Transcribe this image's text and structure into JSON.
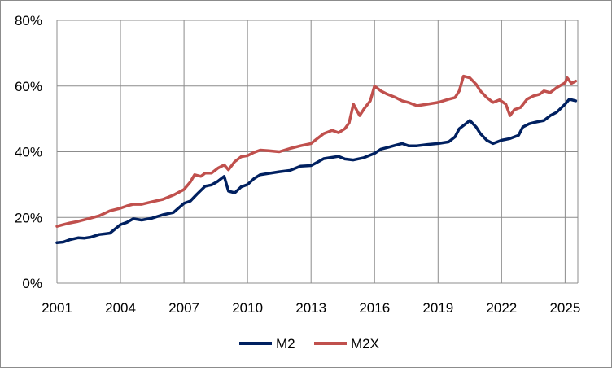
{
  "chart_data": {
    "type": "line",
    "title": "",
    "xlabel": "",
    "ylabel": "",
    "xlim": [
      2001,
      2025.6
    ],
    "ylim": [
      0,
      80
    ],
    "grid": true,
    "legend_position": "bottom-center",
    "x_tick_labels": [
      "2001",
      "2004",
      "2007",
      "2010",
      "2013",
      "2016",
      "2019",
      "2022",
      "2025"
    ],
    "x_tick_values": [
      2001,
      2004,
      2007,
      2010,
      2013,
      2016,
      2019,
      2022,
      2025
    ],
    "y_tick_labels": [
      "0%",
      "20%",
      "40%",
      "60%",
      "80%"
    ],
    "y_tick_values": [
      0,
      20,
      40,
      60,
      80
    ],
    "series": [
      {
        "name": "M2",
        "color": "#002060",
        "points": [
          [
            2001.0,
            12.3
          ],
          [
            2001.3,
            12.5
          ],
          [
            2001.6,
            13.2
          ],
          [
            2002.0,
            13.8
          ],
          [
            2002.3,
            13.7
          ],
          [
            2002.6,
            14.0
          ],
          [
            2003.0,
            14.8
          ],
          [
            2003.5,
            15.2
          ],
          [
            2004.0,
            17.8
          ],
          [
            2004.3,
            18.5
          ],
          [
            2004.6,
            19.6
          ],
          [
            2005.0,
            19.2
          ],
          [
            2005.5,
            19.8
          ],
          [
            2006.0,
            20.8
          ],
          [
            2006.5,
            21.5
          ],
          [
            2007.0,
            24.3
          ],
          [
            2007.3,
            25.0
          ],
          [
            2007.6,
            27.0
          ],
          [
            2008.0,
            29.5
          ],
          [
            2008.3,
            29.9
          ],
          [
            2008.6,
            31.0
          ],
          [
            2008.9,
            32.5
          ],
          [
            2009.1,
            28.0
          ],
          [
            2009.4,
            27.5
          ],
          [
            2009.7,
            29.3
          ],
          [
            2010.0,
            30.0
          ],
          [
            2010.3,
            31.8
          ],
          [
            2010.6,
            33.0
          ],
          [
            2011.0,
            33.4
          ],
          [
            2011.5,
            33.9
          ],
          [
            2012.0,
            34.3
          ],
          [
            2012.5,
            35.6
          ],
          [
            2013.0,
            35.8
          ],
          [
            2013.3,
            36.8
          ],
          [
            2013.6,
            37.9
          ],
          [
            2014.0,
            38.3
          ],
          [
            2014.3,
            38.6
          ],
          [
            2014.6,
            37.8
          ],
          [
            2015.0,
            37.5
          ],
          [
            2015.5,
            38.2
          ],
          [
            2016.0,
            39.5
          ],
          [
            2016.3,
            40.8
          ],
          [
            2016.6,
            41.3
          ],
          [
            2017.0,
            42.0
          ],
          [
            2017.3,
            42.5
          ],
          [
            2017.6,
            41.8
          ],
          [
            2018.0,
            41.8
          ],
          [
            2018.5,
            42.2
          ],
          [
            2019.0,
            42.5
          ],
          [
            2019.5,
            43.0
          ],
          [
            2019.8,
            44.5
          ],
          [
            2020.0,
            47.0
          ],
          [
            2020.3,
            48.5
          ],
          [
            2020.5,
            49.5
          ],
          [
            2020.8,
            47.5
          ],
          [
            2021.0,
            45.5
          ],
          [
            2021.3,
            43.5
          ],
          [
            2021.6,
            42.5
          ],
          [
            2022.0,
            43.5
          ],
          [
            2022.4,
            44.0
          ],
          [
            2022.8,
            45.0
          ],
          [
            2023.0,
            47.5
          ],
          [
            2023.3,
            48.5
          ],
          [
            2023.6,
            49.0
          ],
          [
            2024.0,
            49.5
          ],
          [
            2024.3,
            51.0
          ],
          [
            2024.6,
            52.0
          ],
          [
            2025.0,
            54.5
          ],
          [
            2025.2,
            56.0
          ],
          [
            2025.5,
            55.5
          ]
        ]
      },
      {
        "name": "M2X",
        "color": "#C0504D",
        "points": [
          [
            2001.0,
            17.3
          ],
          [
            2001.3,
            17.8
          ],
          [
            2001.6,
            18.3
          ],
          [
            2002.0,
            18.8
          ],
          [
            2002.3,
            19.3
          ],
          [
            2002.6,
            19.8
          ],
          [
            2003.0,
            20.5
          ],
          [
            2003.5,
            22.0
          ],
          [
            2004.0,
            22.8
          ],
          [
            2004.3,
            23.5
          ],
          [
            2004.6,
            24.0
          ],
          [
            2005.0,
            24.0
          ],
          [
            2005.5,
            24.8
          ],
          [
            2006.0,
            25.5
          ],
          [
            2006.5,
            26.8
          ],
          [
            2007.0,
            28.5
          ],
          [
            2007.3,
            30.8
          ],
          [
            2007.5,
            33.0
          ],
          [
            2007.8,
            32.5
          ],
          [
            2008.0,
            33.5
          ],
          [
            2008.3,
            33.5
          ],
          [
            2008.6,
            35.0
          ],
          [
            2008.9,
            36.0
          ],
          [
            2009.1,
            34.5
          ],
          [
            2009.4,
            37.0
          ],
          [
            2009.7,
            38.5
          ],
          [
            2010.0,
            38.8
          ],
          [
            2010.3,
            39.8
          ],
          [
            2010.6,
            40.5
          ],
          [
            2011.0,
            40.3
          ],
          [
            2011.5,
            40.0
          ],
          [
            2012.0,
            41.0
          ],
          [
            2012.5,
            41.8
          ],
          [
            2013.0,
            42.5
          ],
          [
            2013.3,
            44.0
          ],
          [
            2013.6,
            45.5
          ],
          [
            2014.0,
            46.5
          ],
          [
            2014.3,
            45.8
          ],
          [
            2014.6,
            47.0
          ],
          [
            2014.8,
            48.8
          ],
          [
            2015.0,
            54.5
          ],
          [
            2015.3,
            51.0
          ],
          [
            2015.5,
            53.0
          ],
          [
            2015.8,
            55.5
          ],
          [
            2016.0,
            60.0
          ],
          [
            2016.3,
            58.5
          ],
          [
            2016.6,
            57.5
          ],
          [
            2017.0,
            56.5
          ],
          [
            2017.3,
            55.5
          ],
          [
            2017.6,
            55.0
          ],
          [
            2018.0,
            54.0
          ],
          [
            2018.5,
            54.5
          ],
          [
            2019.0,
            55.0
          ],
          [
            2019.5,
            56.0
          ],
          [
            2019.8,
            56.5
          ],
          [
            2020.0,
            58.5
          ],
          [
            2020.2,
            63.0
          ],
          [
            2020.5,
            62.5
          ],
          [
            2020.8,
            60.5
          ],
          [
            2021.0,
            58.5
          ],
          [
            2021.3,
            56.5
          ],
          [
            2021.6,
            55.0
          ],
          [
            2021.9,
            55.8
          ],
          [
            2022.2,
            54.5
          ],
          [
            2022.4,
            51.0
          ],
          [
            2022.6,
            52.8
          ],
          [
            2022.9,
            53.5
          ],
          [
            2023.2,
            56.0
          ],
          [
            2023.5,
            57.0
          ],
          [
            2023.8,
            57.5
          ],
          [
            2024.0,
            58.5
          ],
          [
            2024.3,
            58.0
          ],
          [
            2024.6,
            59.5
          ],
          [
            2025.0,
            61.0
          ],
          [
            2025.1,
            62.5
          ],
          [
            2025.3,
            60.8
          ],
          [
            2025.5,
            61.5
          ]
        ]
      }
    ]
  }
}
